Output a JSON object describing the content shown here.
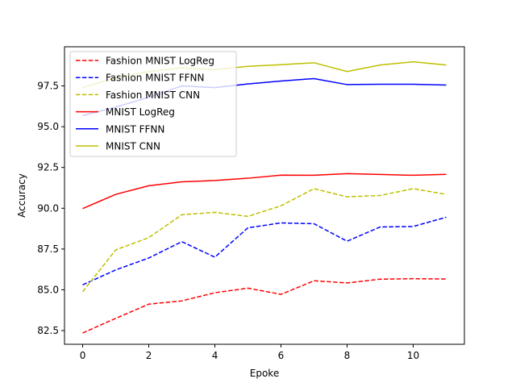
{
  "chart_data": {
    "type": "line",
    "title": "",
    "xlabel": "Epoke",
    "ylabel": "Accuracy",
    "x": [
      0,
      1,
      2,
      3,
      4,
      5,
      6,
      7,
      8,
      9,
      10,
      11
    ],
    "xlim": [
      -0.55,
      11.55
    ],
    "ylim": [
      81.66,
      99.9
    ],
    "xticks": [
      0,
      2,
      4,
      6,
      8,
      10
    ],
    "yticks": [
      82.5,
      85.0,
      87.5,
      90.0,
      92.5,
      95.0,
      97.5
    ],
    "ytick_labels": [
      "82.5",
      "85.0",
      "87.5",
      "90.0",
      "92.5",
      "95.0",
      "97.5"
    ],
    "grid": false,
    "legend_position": "upper-left",
    "series": [
      {
        "name": "Fashion MNIST LogReg",
        "color": "#ff0000",
        "style": "dashed",
        "values": [
          82.35,
          83.25,
          84.12,
          84.32,
          84.82,
          85.1,
          84.72,
          85.55,
          85.42,
          85.65,
          85.68,
          85.66
        ]
      },
      {
        "name": "Fashion MNIST FFNN",
        "color": "#0000ff",
        "style": "dashed",
        "values": [
          85.3,
          86.22,
          86.95,
          87.95,
          87.0,
          88.8,
          89.1,
          89.05,
          87.98,
          88.85,
          88.88,
          89.45
        ]
      },
      {
        "name": "Fashion MNIST CNN",
        "color": "#bfbf00",
        "style": "dashed",
        "values": [
          84.88,
          87.45,
          88.2,
          89.6,
          89.75,
          89.5,
          90.15,
          91.2,
          90.7,
          90.78,
          91.2,
          90.85
        ]
      },
      {
        "name": "MNIST LogReg",
        "color": "#ff0000",
        "style": "solid",
        "values": [
          89.98,
          90.85,
          91.38,
          91.62,
          91.7,
          91.84,
          92.03,
          92.02,
          92.12,
          92.07,
          92.02,
          92.08
        ]
      },
      {
        "name": "MNIST FFNN",
        "color": "#0000ff",
        "style": "solid",
        "values": [
          95.68,
          96.2,
          96.8,
          97.5,
          97.4,
          97.62,
          97.8,
          97.95,
          97.58,
          97.6,
          97.6,
          97.55
        ]
      },
      {
        "name": "MNIST CNN",
        "color": "#bfbf00",
        "style": "solid",
        "values": [
          97.4,
          98.0,
          98.38,
          98.6,
          98.5,
          98.7,
          98.8,
          98.92,
          98.38,
          98.78,
          98.98,
          98.78
        ]
      }
    ]
  }
}
